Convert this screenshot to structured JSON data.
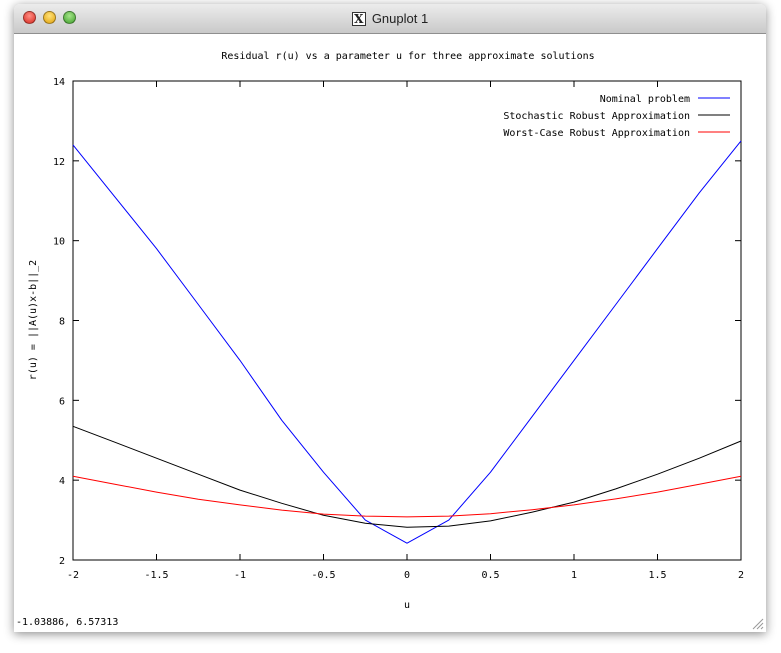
{
  "window": {
    "title": "Gnuplot 1"
  },
  "status_bar": {
    "coords": "-1.03886,  6.57313"
  },
  "chart_data": {
    "type": "line",
    "title": "Residual r(u) vs a parameter u for three approximate solutions",
    "xlabel": "u",
    "ylabel": "r(u) = ||A(u)x-b||_2",
    "xlim": [
      -2,
      2
    ],
    "ylim": [
      2,
      14
    ],
    "xticks": [
      -2,
      -1.5,
      -1,
      -0.5,
      0,
      0.5,
      1,
      1.5,
      2
    ],
    "xtick_labels": [
      "-2",
      "-1.5",
      "-1",
      "-0.5",
      "0",
      "0.5",
      "1",
      "1.5",
      "2"
    ],
    "yticks": [
      2,
      4,
      6,
      8,
      10,
      12,
      14
    ],
    "ytick_labels": [
      "2",
      "4",
      "6",
      "8",
      "10",
      "12",
      "14"
    ],
    "grid": false,
    "legend_position": "top-right",
    "x": [
      -2.0,
      -1.75,
      -1.5,
      -1.25,
      -1.0,
      -0.75,
      -0.5,
      -0.25,
      0.0,
      0.25,
      0.5,
      0.75,
      1.0,
      1.25,
      1.5,
      1.75,
      2.0
    ],
    "series": [
      {
        "name": "Nominal problem",
        "color": "#0000ff",
        "values": [
          12.4,
          11.1,
          9.8,
          8.4,
          7.0,
          5.5,
          4.2,
          3.0,
          2.42,
          3.0,
          4.2,
          5.6,
          7.0,
          8.4,
          9.8,
          11.2,
          12.5
        ]
      },
      {
        "name": "Stochastic Robust Approximation",
        "color": "#000000",
        "values": [
          5.35,
          4.95,
          4.55,
          4.15,
          3.75,
          3.42,
          3.12,
          2.92,
          2.82,
          2.85,
          2.98,
          3.2,
          3.45,
          3.78,
          4.15,
          4.55,
          4.98
        ]
      },
      {
        "name": "Worst-Case Robust Approximation",
        "color": "#ff0000",
        "values": [
          4.1,
          3.9,
          3.7,
          3.52,
          3.38,
          3.25,
          3.15,
          3.1,
          3.08,
          3.1,
          3.16,
          3.26,
          3.38,
          3.53,
          3.7,
          3.9,
          4.1
        ]
      }
    ]
  }
}
